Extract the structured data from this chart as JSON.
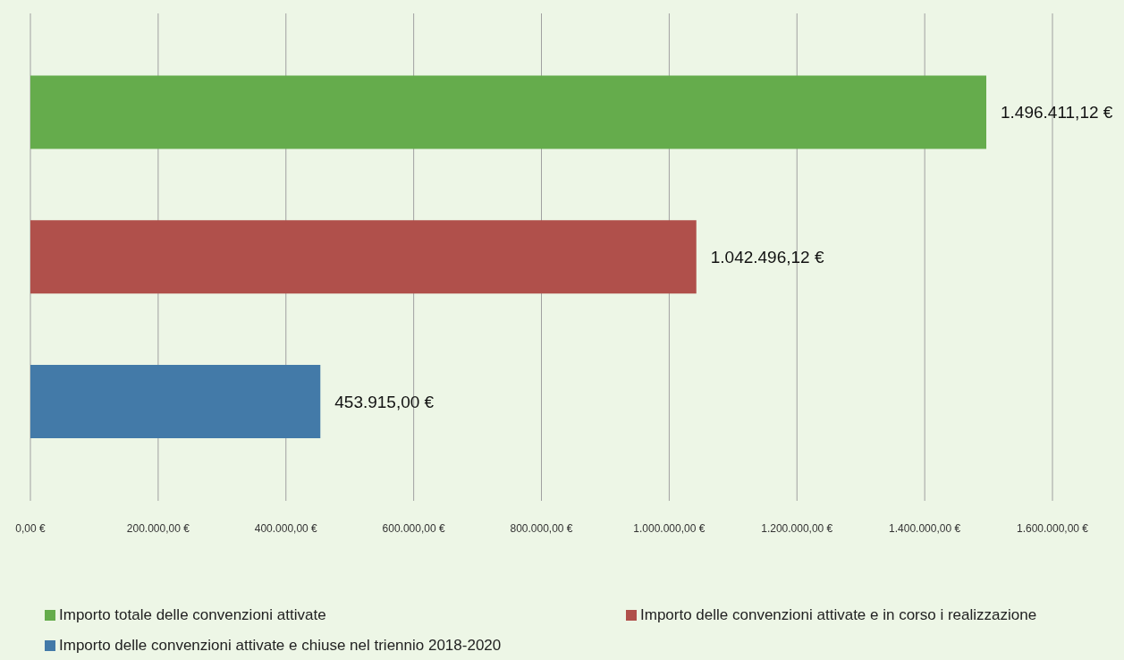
{
  "chart_data": {
    "type": "bar",
    "orientation": "horizontal",
    "stacked": true,
    "categories": [
      null,
      null,
      null
    ],
    "series": [
      {
        "name": "Importo totale delle convenzioni attivate",
        "color": "#65ac4c",
        "values": [
          1496411.12,
          null,
          null
        ],
        "value_labels": [
          "1.496.411,12 €",
          null,
          null
        ]
      },
      {
        "name": "Importo delle convenzioni attivate e in corso i realizzazione",
        "color": "#b0504b",
        "values": [
          null,
          1042496.12,
          null
        ],
        "value_labels": [
          null,
          "1.042.496,12 €",
          null
        ]
      },
      {
        "name": "Importo delle convenzioni attivate e chiuse nel triennio 2018-2020",
        "color": "#437aa8",
        "values": [
          null,
          null,
          453915
        ],
        "value_labels": [
          null,
          null,
          "453.915,00 €"
        ]
      }
    ],
    "xlim": [
      0,
      1600000
    ],
    "xticks": [
      {
        "value": 0,
        "label": "0,00 €"
      },
      {
        "value": 200000,
        "label": "200.000,00 €"
      },
      {
        "value": 400000,
        "label": "400.000,00 €"
      },
      {
        "value": 600000,
        "label": "600.000,00 €"
      },
      {
        "value": 800000,
        "label": "800.000,00 €"
      },
      {
        "value": 1000000,
        "label": "1.000.000,00 €"
      },
      {
        "value": 1200000,
        "label": "1.200.000,00 €"
      },
      {
        "value": 1400000,
        "label": "1.400.000,00 €"
      },
      {
        "value": 1600000,
        "label": "1.600.000,00 €"
      }
    ],
    "grid": "x",
    "legend": "bottom"
  }
}
